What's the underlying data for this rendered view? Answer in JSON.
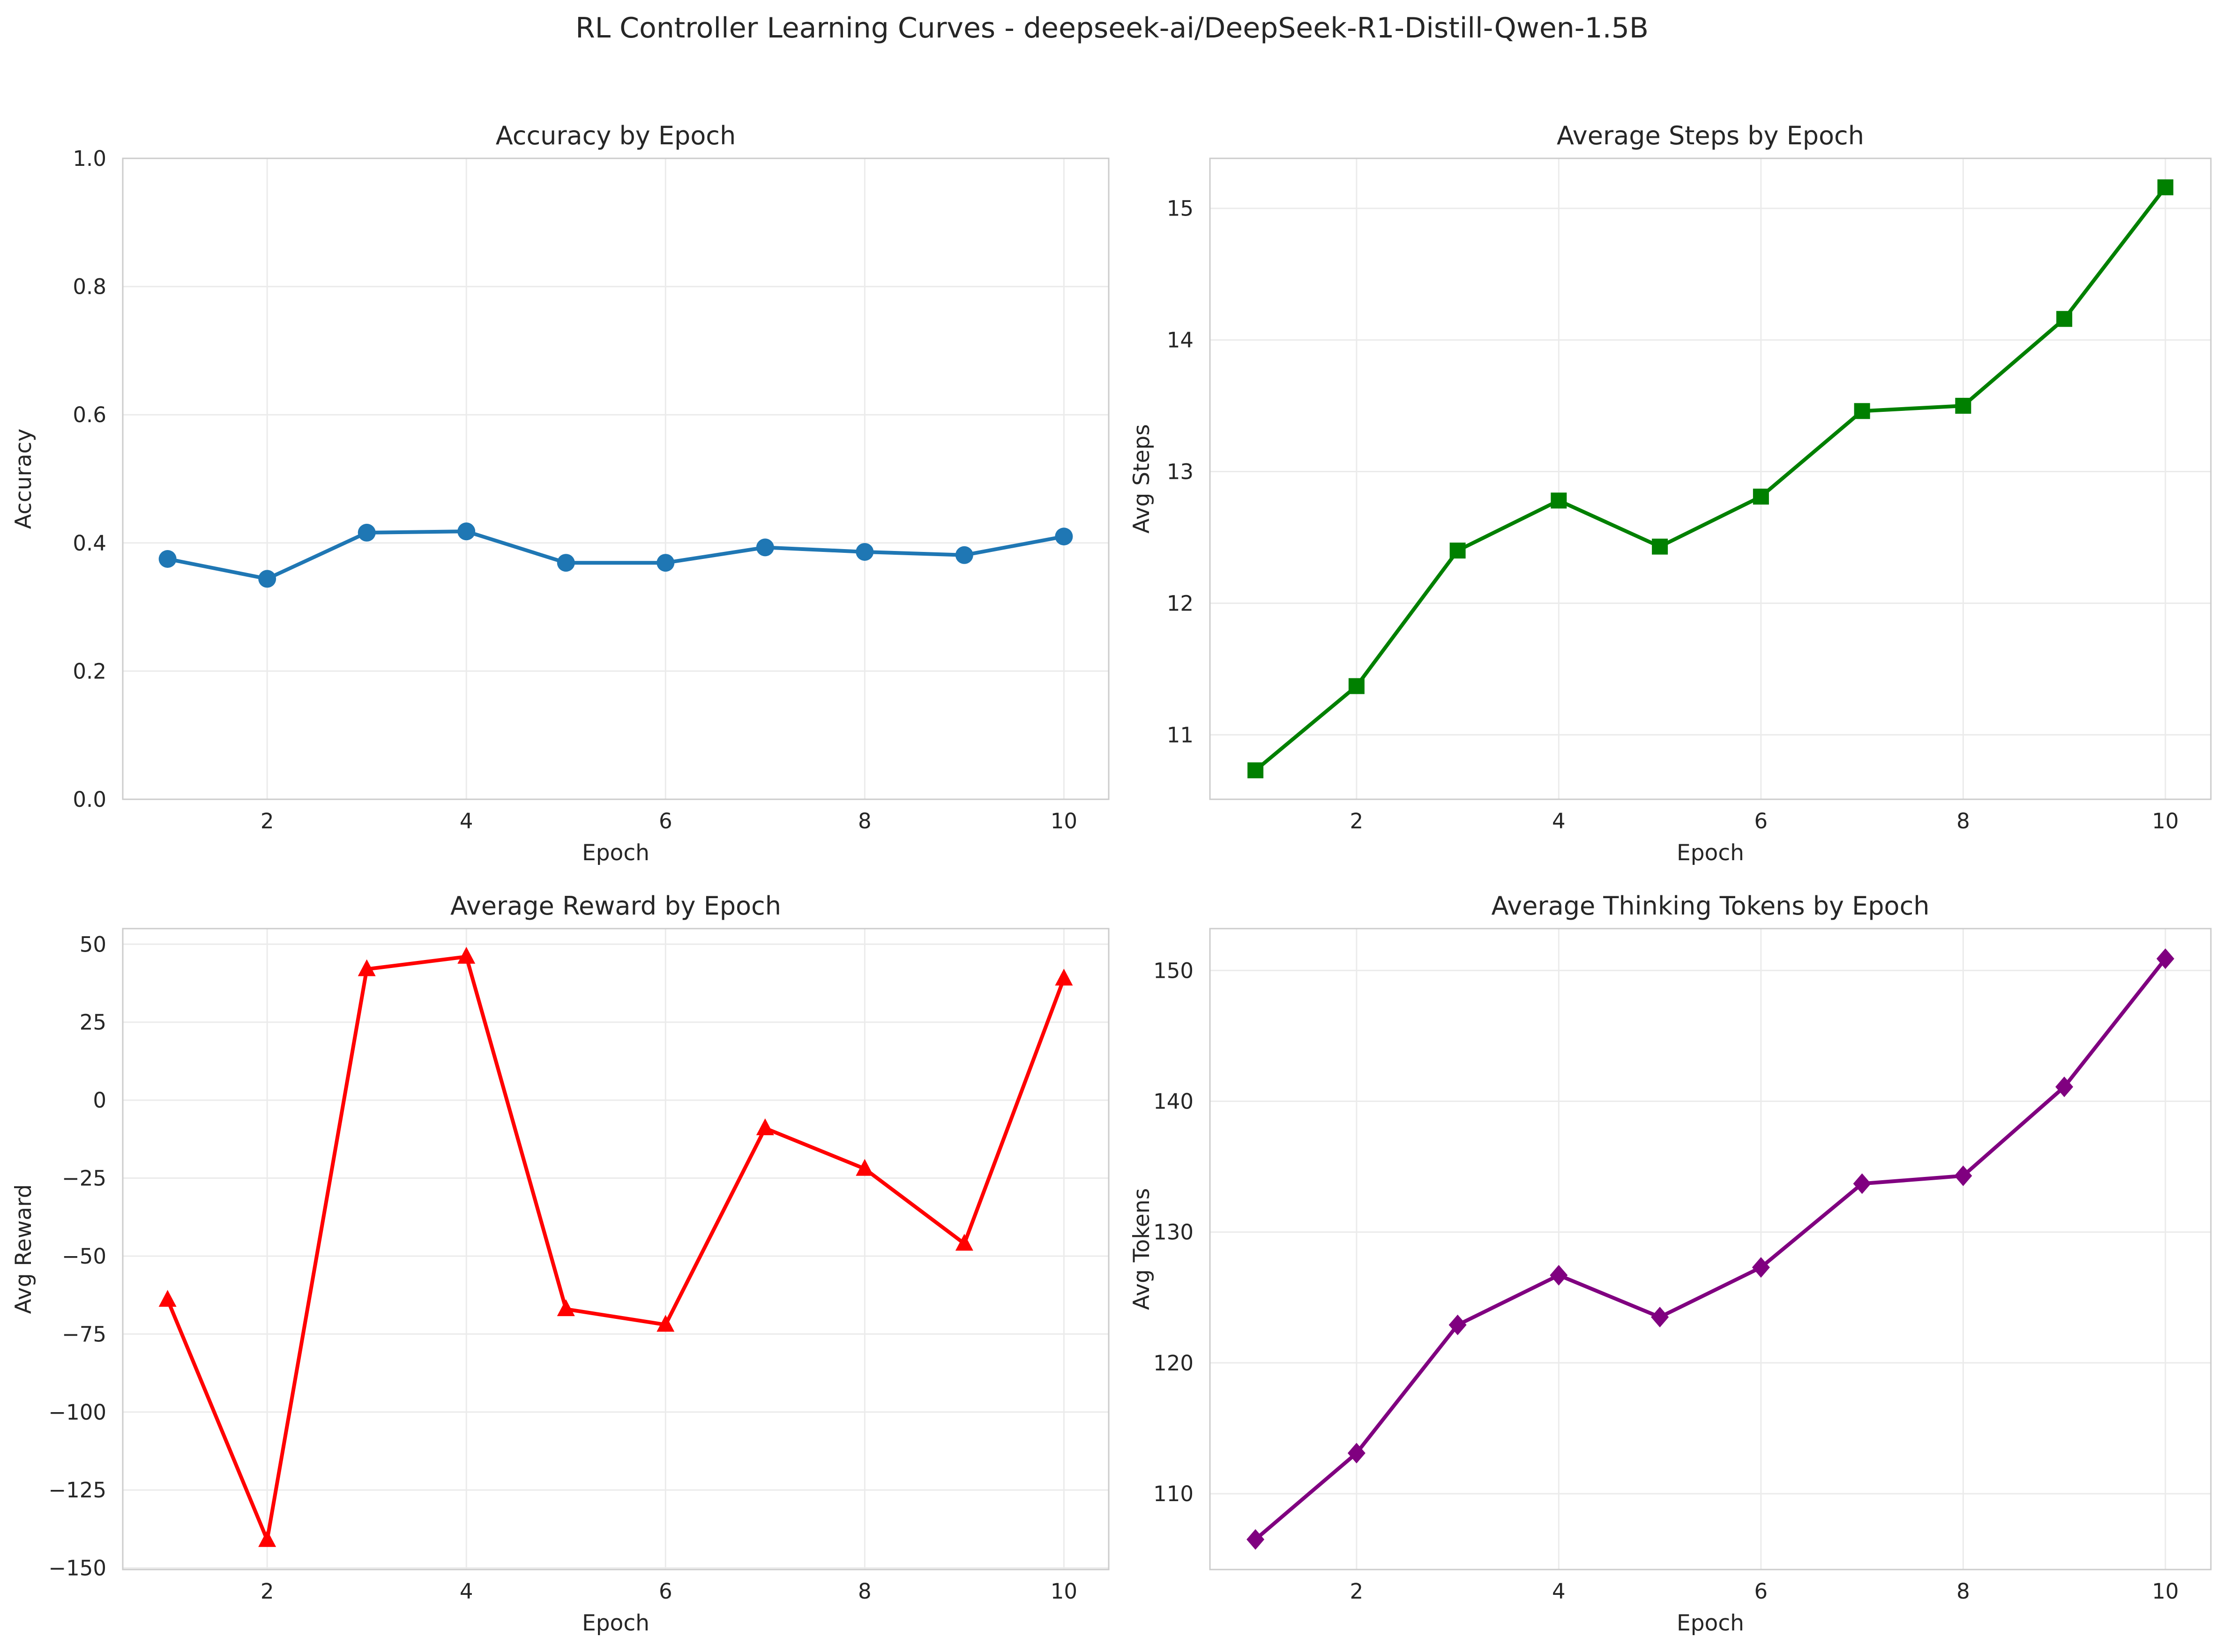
{
  "figure": {
    "suptitle": "RL Controller Learning Curves - deepseek-ai/DeepSeek-R1-Distill-Qwen-1.5B"
  },
  "chart_data": [
    {
      "type": "line",
      "title": "Accuracy by Epoch",
      "xlabel": "Epoch",
      "ylabel": "Accuracy",
      "x": [
        1,
        2,
        3,
        4,
        5,
        6,
        7,
        8,
        9,
        10
      ],
      "values": [
        0.375,
        0.344,
        0.416,
        0.418,
        0.369,
        0.369,
        0.393,
        0.386,
        0.381,
        0.41
      ],
      "xlim": [
        0.55,
        10.45
      ],
      "ylim": [
        0,
        1.0
      ],
      "xticks": [
        2,
        4,
        6,
        8,
        10
      ],
      "yticks": [
        0.0,
        0.2,
        0.4,
        0.6,
        0.8,
        1.0
      ],
      "ytick_labels": [
        "0.0",
        "0.2",
        "0.4",
        "0.6",
        "0.8",
        "1.0"
      ],
      "color": "#1f77b4",
      "marker": "circle",
      "grid": true
    },
    {
      "type": "line",
      "title": "Average Steps by Epoch",
      "xlabel": "Epoch",
      "ylabel": "Avg Steps",
      "x": [
        1,
        2,
        3,
        4,
        5,
        6,
        7,
        8,
        9,
        10
      ],
      "values": [
        10.73,
        11.37,
        12.4,
        12.78,
        12.43,
        12.81,
        13.46,
        13.5,
        14.16,
        15.16
      ],
      "xlim": [
        0.55,
        10.45
      ],
      "ylim": [
        10.51,
        15.38
      ],
      "xticks": [
        2,
        4,
        6,
        8,
        10
      ],
      "yticks": [
        11,
        12,
        13,
        14,
        15
      ],
      "ytick_labels": [
        "11",
        "12",
        "13",
        "14",
        "15"
      ],
      "color": "#008000",
      "marker": "square",
      "grid": true
    },
    {
      "type": "line",
      "title": "Average Reward by Epoch",
      "xlabel": "Epoch",
      "ylabel": "Avg Reward",
      "x": [
        1,
        2,
        3,
        4,
        5,
        6,
        7,
        8,
        9,
        10
      ],
      "values": [
        -64,
        -141,
        42,
        46,
        -67,
        -72,
        -9,
        -22,
        -46,
        39
      ],
      "xlim": [
        0.55,
        10.45
      ],
      "ylim": [
        -150.5,
        55
      ],
      "xticks": [
        2,
        4,
        6,
        8,
        10
      ],
      "yticks": [
        -150,
        -125,
        -100,
        -75,
        -50,
        -25,
        0,
        25,
        50
      ],
      "ytick_labels": [
        "−150",
        "−125",
        "−100",
        "−75",
        "−50",
        "−25",
        "0",
        "25",
        "50"
      ],
      "color": "#ff0000",
      "marker": "triangle",
      "grid": true
    },
    {
      "type": "line",
      "title": "Average Thinking Tokens by Epoch",
      "xlabel": "Epoch",
      "ylabel": "Avg Tokens",
      "x": [
        1,
        2,
        3,
        4,
        5,
        6,
        7,
        8,
        9,
        10
      ],
      "values": [
        106.5,
        113.1,
        122.9,
        126.7,
        123.5,
        127.3,
        133.7,
        134.3,
        141.1,
        150.9
      ],
      "xlim": [
        0.55,
        10.45
      ],
      "ylim": [
        104.2,
        153.2
      ],
      "xticks": [
        2,
        4,
        6,
        8,
        10
      ],
      "yticks": [
        110,
        120,
        130,
        140,
        150
      ],
      "ytick_labels": [
        "110",
        "120",
        "130",
        "140",
        "150"
      ],
      "color": "#800080",
      "marker": "diamond",
      "grid": true
    }
  ]
}
